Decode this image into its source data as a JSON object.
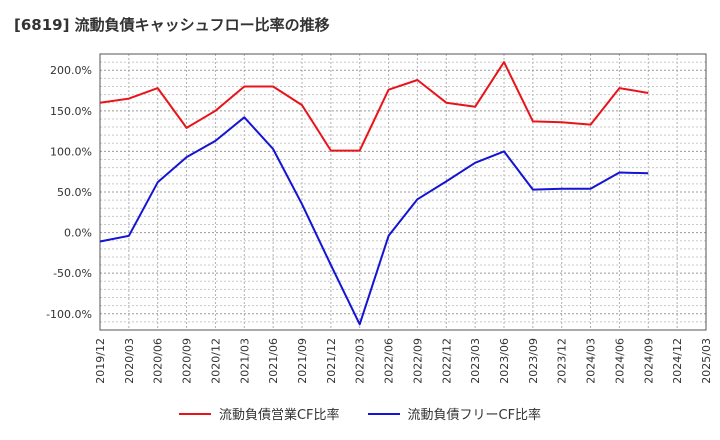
{
  "title": "[6819]  流動負債キャッシュフロー比率の推移",
  "chart_data": {
    "type": "line",
    "x": [
      "2019/12",
      "2020/03",
      "2020/06",
      "2020/09",
      "2020/12",
      "2021/03",
      "2021/06",
      "2021/09",
      "2021/12",
      "2022/03",
      "2022/06",
      "2022/09",
      "2022/12",
      "2023/03",
      "2023/06",
      "2023/09",
      "2023/12",
      "2024/03",
      "2024/06",
      "2024/09",
      "2024/12",
      "2025/03"
    ],
    "ylim": [
      -120,
      220
    ],
    "y_ticks": [
      200,
      150,
      100,
      50,
      0,
      -50,
      -100
    ],
    "y_tick_labels": [
      "200.0%",
      "150.0%",
      "100.0%",
      "50.0%",
      "0.0%",
      "-50.0%",
      "-100.0%"
    ],
    "grid": true,
    "legend": "bottom",
    "series": [
      {
        "name": "流動負債営業CF比率",
        "color": "#e8141b",
        "values": [
          160,
          165,
          178,
          129,
          150,
          180,
          180,
          157,
          101,
          101,
          176,
          188,
          160,
          155,
          210,
          137,
          136,
          133,
          178,
          172,
          null,
          null
        ]
      },
      {
        "name": "流動負債フリーCF比率",
        "color": "#1414d4",
        "values": [
          -11,
          -4,
          62,
          93,
          113,
          142,
          103,
          35,
          -40,
          -113,
          -4,
          41,
          63,
          86,
          100,
          53,
          54,
          54,
          74,
          73,
          null,
          null
        ]
      }
    ]
  }
}
